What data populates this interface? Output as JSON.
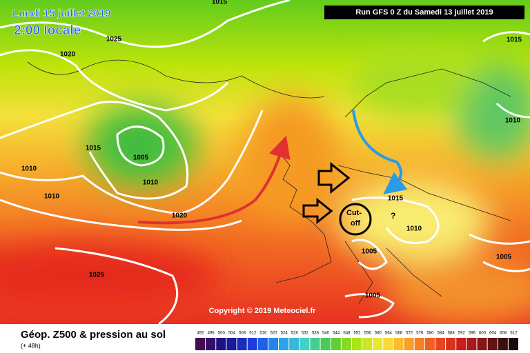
{
  "header": {
    "date": "Lundi 15 juillet 2019",
    "time": "2:00 locale",
    "run": "Run GFS 0 Z du Samedi 13 juillet 2019"
  },
  "map": {
    "isobar_labels": [
      "1015",
      "1025",
      "1020",
      "1015",
      "1010",
      "1015",
      "1005",
      "1010",
      "1010",
      "1010",
      "1020",
      "1015",
      "1010",
      "1005",
      "1005",
      "1025",
      "1005"
    ],
    "cutoff_lines": [
      "Cut-",
      "off"
    ],
    "question": "?",
    "copyright": "Copyright © 2019 Meteociel.fr"
  },
  "legend": {
    "title": "Géop. Z500 & pression au sol",
    "lead": "(+ 48h)",
    "scale": [
      492,
      496,
      500,
      504,
      508,
      512,
      516,
      520,
      524,
      528,
      532,
      536,
      540,
      544,
      548,
      552,
      556,
      560,
      564,
      568,
      572,
      576,
      580,
      584,
      588,
      592,
      596,
      600,
      604,
      608,
      612
    ]
  }
}
